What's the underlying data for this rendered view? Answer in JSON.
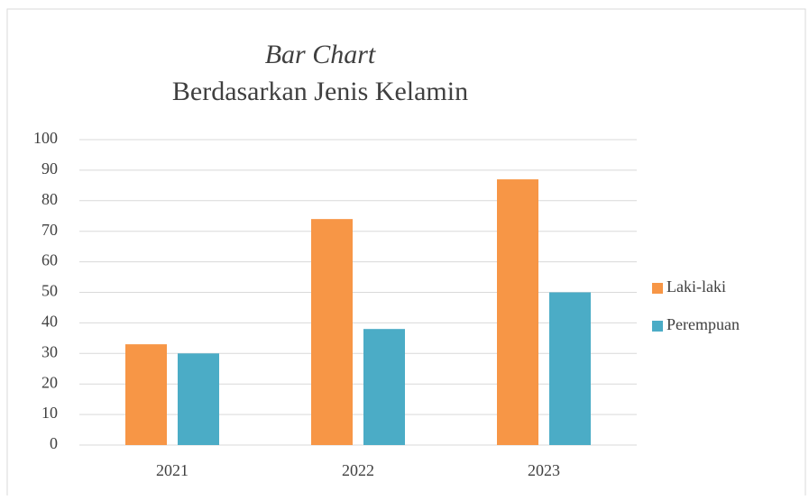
{
  "chart_data": {
    "type": "bar",
    "title": "Bar Chart",
    "subtitle": "Berdasarkan Jenis Kelamin",
    "categories": [
      "2021",
      "2022",
      "2023"
    ],
    "series": [
      {
        "name": "Laki-laki",
        "color": "#f79646",
        "values": [
          33,
          74,
          87
        ]
      },
      {
        "name": "Perempuan",
        "color": "#4bacc6",
        "values": [
          30,
          38,
          50
        ]
      }
    ],
    "ylim": [
      0,
      100
    ],
    "yticks": [
      0,
      10,
      20,
      30,
      40,
      50,
      60,
      70,
      80,
      90,
      100
    ],
    "grid": true,
    "legend": "right"
  }
}
